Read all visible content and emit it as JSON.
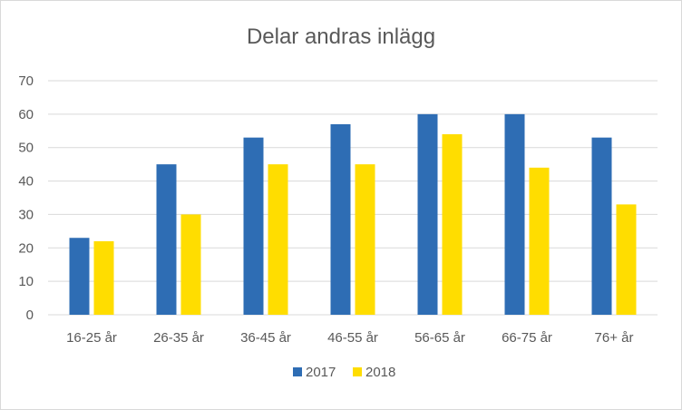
{
  "chart_data": {
    "type": "bar",
    "title": "Delar andras inlägg",
    "xlabel": "",
    "ylabel": "",
    "categories": [
      "16-25 år",
      "26-35 år",
      "36-45 år",
      "46-55 år",
      "56-65 år",
      "66-75 år",
      "76+ år"
    ],
    "series": [
      {
        "name": "2017",
        "values": [
          23,
          45,
          53,
          57,
          60,
          60,
          53
        ],
        "color": "#2e6db4"
      },
      {
        "name": "2018",
        "values": [
          22,
          30,
          45,
          45,
          54,
          44,
          33
        ],
        "color": "#ffdd00"
      }
    ],
    "ylim": [
      0,
      70
    ],
    "yticks": [
      0,
      10,
      20,
      30,
      40,
      50,
      60,
      70
    ],
    "grid": true,
    "gridColor": "#d9d9d9",
    "legend": "bottom"
  }
}
